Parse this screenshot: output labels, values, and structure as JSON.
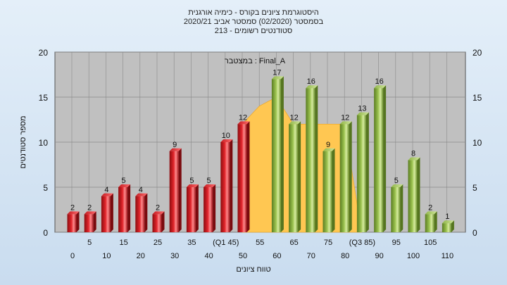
{
  "header": {
    "title_line1": "היסטוגרמת ציונים בקורס - כימיה אורגנית",
    "title_line2": "בסמסטר  (02/2020)  סמסטר אביב 2020/21",
    "title_line3": "סטודנטים רשומים - 213"
  },
  "chart_data": {
    "type": "bar",
    "title": "היסטוגרמת ציונים בקורס - כימיה אורגנית",
    "xlabel": "טווח ציונים",
    "ylabel": "מספר סטודנטים",
    "ylim": [
      0,
      20
    ],
    "yticks": [
      0,
      5,
      10,
      15,
      20
    ],
    "grid": true,
    "annotation": "במצטבר : Final_A",
    "categories": [
      "0",
      "5",
      "10",
      "15",
      "20",
      "25",
      "30",
      "35",
      "40",
      "(Q1 45)",
      "50",
      "55",
      "60",
      "65",
      "70",
      "75",
      "80",
      "(Q3 85)",
      "90",
      "95",
      "100",
      "105",
      "110"
    ],
    "values": [
      2,
      2,
      4,
      5,
      4,
      2,
      9,
      5,
      5,
      10,
      12,
      null,
      17,
      12,
      16,
      9,
      12,
      13,
      16,
      5,
      8,
      2,
      1
    ],
    "bar_colors": [
      "red",
      "red",
      "red",
      "red",
      "red",
      "red",
      "red",
      "red",
      "red",
      "red",
      "red",
      null,
      "green",
      "green",
      "green",
      "green",
      "green",
      "green",
      "green",
      "green",
      "green",
      "green",
      "green"
    ],
    "area_values": [
      null,
      null,
      null,
      null,
      null,
      null,
      null,
      null,
      null,
      null,
      12,
      14,
      15,
      12,
      12,
      12,
      12,
      0,
      null,
      null,
      null,
      null,
      null
    ]
  },
  "colors": {
    "red_bar": "#e0242a",
    "green_bar": "#9bc24f",
    "area": "#ffc752",
    "plot_bg": "#c0c0c0",
    "grid": "#8a8a8a"
  }
}
